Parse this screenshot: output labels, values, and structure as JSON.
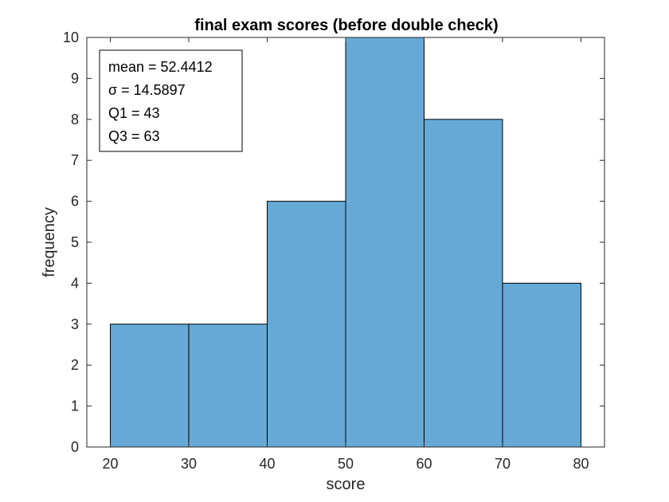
{
  "chart_data": {
    "type": "bar",
    "title": "final exam scores (before double check)",
    "xlabel": "score",
    "ylabel": "frequency",
    "bin_edges": [
      20,
      30,
      40,
      50,
      60,
      70,
      80
    ],
    "values": [
      3,
      3,
      6,
      10,
      8,
      4
    ],
    "xlim": [
      17,
      83
    ],
    "ylim": [
      0,
      10
    ],
    "x_ticks": [
      20,
      30,
      40,
      50,
      60,
      70,
      80
    ],
    "y_ticks": [
      0,
      1,
      2,
      3,
      4,
      5,
      6,
      7,
      8,
      9,
      10
    ],
    "bar_color": "#66a9d6",
    "grid": false,
    "annotation": {
      "lines": [
        "mean = 52.4412",
        "σ = 14.5897",
        "Q1 = 43",
        "Q3 = 63"
      ],
      "placement": "top-left"
    }
  }
}
